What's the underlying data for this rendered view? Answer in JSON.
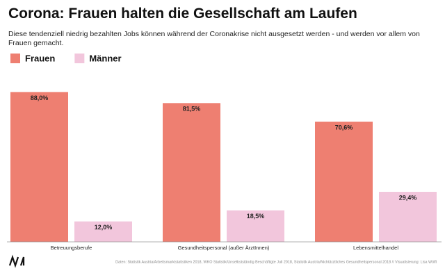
{
  "chart_data": {
    "type": "bar",
    "title": "Corona: Frauen halten die Gesellschaft am Laufen",
    "subtitle": "Diese tendenziell niedrig bezahlten Jobs können während der Coronakrise nicht ausgesetzt werden - und werden vor allem von Frauen gemacht.",
    "categories": [
      "Betreuungsberufe",
      "Gesundheitspersonal (außer ÄrztInnen)",
      "Lebensmittelhandel"
    ],
    "series": [
      {
        "name": "Frauen",
        "color": "#ee7f71",
        "values": [
          88.0,
          81.5,
          70.6
        ],
        "value_labels": [
          "88,0%",
          "81,5%",
          "70,6%"
        ]
      },
      {
        "name": "Männer",
        "color": "#f2c6dc",
        "values": [
          12.0,
          18.5,
          29.4
        ],
        "value_labels": [
          "12,0%",
          "18,5%",
          "29,4%"
        ]
      }
    ],
    "ylim": [
      0,
      100
    ],
    "source": "Daten: Statistik Austria/Arbeitsmarktstatistiken 2018, WKO Statistik/Unselbstständig Beschäftigte Juli 2018, Statistik Austria/Nichtärztliches Gesundheitspersonal 2018 // Visualisierung: Lisa Wölfl"
  }
}
